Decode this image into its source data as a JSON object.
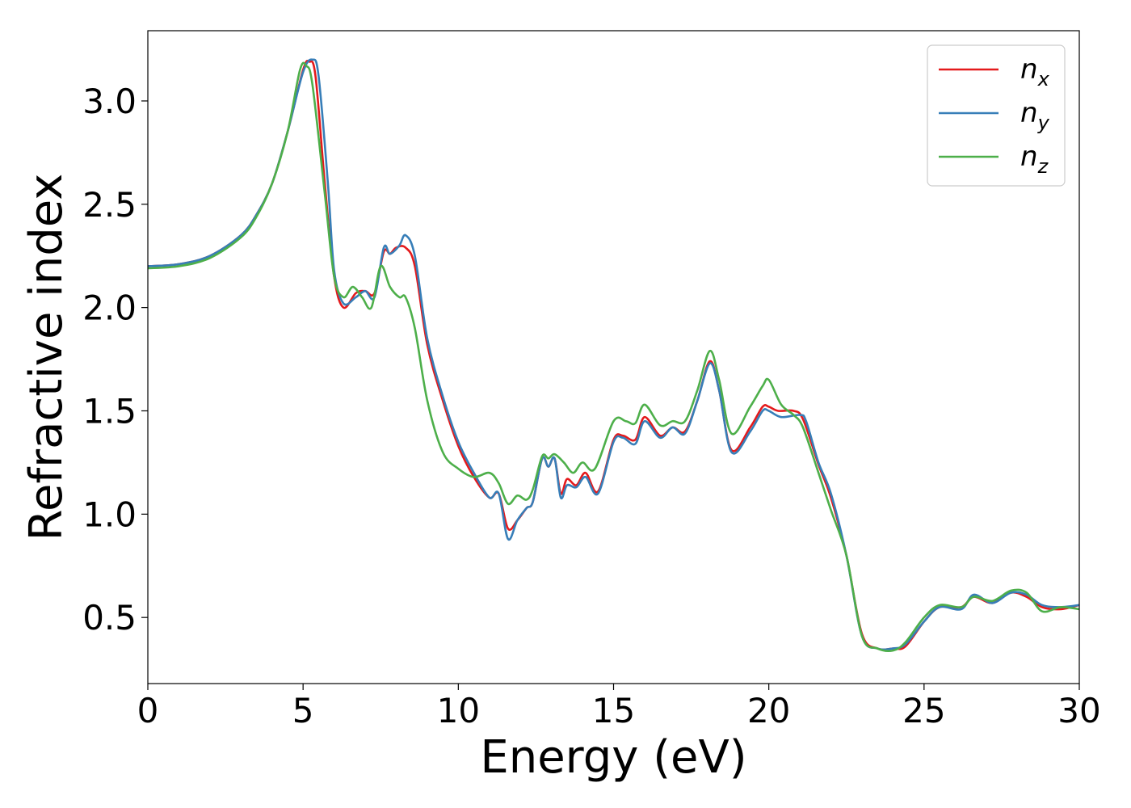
{
  "chart_data": {
    "type": "line",
    "title": "",
    "xlabel": "Energy (eV)",
    "ylabel": "Refractive index",
    "xlim": [
      0,
      30
    ],
    "ylim": [
      0.18,
      3.34
    ],
    "xticks": [
      0,
      5,
      10,
      15,
      20,
      25,
      30
    ],
    "xtick_labels": [
      "0",
      "5",
      "10",
      "15",
      "20",
      "25",
      "30"
    ],
    "yticks": [
      0.5,
      1.0,
      1.5,
      2.0,
      2.5,
      3.0
    ],
    "ytick_labels": [
      "0.5",
      "1.0",
      "1.5",
      "2.0",
      "2.5",
      "3.0"
    ],
    "grid": false,
    "legend_position": "top-right",
    "series": [
      {
        "name": "n",
        "subscript": "x",
        "color": "#e41a1c",
        "points": [
          [
            0,
            2.2
          ],
          [
            1,
            2.21
          ],
          [
            2,
            2.25
          ],
          [
            3,
            2.35
          ],
          [
            3.5,
            2.45
          ],
          [
            4,
            2.6
          ],
          [
            4.5,
            2.85
          ],
          [
            5,
            3.15
          ],
          [
            5.2,
            3.19
          ],
          [
            5.4,
            3.12
          ],
          [
            5.7,
            2.6
          ],
          [
            6,
            2.15
          ],
          [
            6.3,
            2.0
          ],
          [
            6.7,
            2.07
          ],
          [
            7,
            2.08
          ],
          [
            7.3,
            2.07
          ],
          [
            7.6,
            2.27
          ],
          [
            7.8,
            2.26
          ],
          [
            8,
            2.29
          ],
          [
            8.3,
            2.29
          ],
          [
            8.6,
            2.2
          ],
          [
            9,
            1.82
          ],
          [
            9.5,
            1.55
          ],
          [
            10,
            1.33
          ],
          [
            10.5,
            1.18
          ],
          [
            11,
            1.08
          ],
          [
            11.3,
            1.1
          ],
          [
            11.6,
            0.93
          ],
          [
            11.9,
            0.97
          ],
          [
            12.2,
            1.03
          ],
          [
            12.4,
            1.06
          ],
          [
            12.7,
            1.27
          ],
          [
            12.9,
            1.23
          ],
          [
            13.1,
            1.27
          ],
          [
            13.3,
            1.1
          ],
          [
            13.5,
            1.17
          ],
          [
            13.8,
            1.14
          ],
          [
            14.1,
            1.2
          ],
          [
            14.5,
            1.11
          ],
          [
            15,
            1.36
          ],
          [
            15.3,
            1.38
          ],
          [
            15.7,
            1.36
          ],
          [
            16,
            1.47
          ],
          [
            16.5,
            1.38
          ],
          [
            16.9,
            1.42
          ],
          [
            17.3,
            1.4
          ],
          [
            17.7,
            1.55
          ],
          [
            18.1,
            1.74
          ],
          [
            18.4,
            1.6
          ],
          [
            18.8,
            1.31
          ],
          [
            19.4,
            1.42
          ],
          [
            19.8,
            1.52
          ],
          [
            20,
            1.52
          ],
          [
            20.3,
            1.5
          ],
          [
            20.8,
            1.5
          ],
          [
            21.1,
            1.46
          ],
          [
            21.6,
            1.24
          ],
          [
            22,
            1.08
          ],
          [
            22.5,
            0.8
          ],
          [
            23,
            0.42
          ],
          [
            23.5,
            0.35
          ],
          [
            24,
            0.35
          ],
          [
            24.4,
            0.36
          ],
          [
            25,
            0.48
          ],
          [
            25.5,
            0.55
          ],
          [
            26.2,
            0.55
          ],
          [
            26.6,
            0.6
          ],
          [
            27.2,
            0.57
          ],
          [
            27.8,
            0.62
          ],
          [
            28.3,
            0.6
          ],
          [
            28.8,
            0.55
          ],
          [
            29.4,
            0.54
          ],
          [
            30,
            0.56
          ]
        ]
      },
      {
        "name": "n",
        "subscript": "y",
        "color": "#377eb8",
        "points": [
          [
            0,
            2.2
          ],
          [
            1,
            2.21
          ],
          [
            2,
            2.25
          ],
          [
            3,
            2.35
          ],
          [
            3.5,
            2.45
          ],
          [
            4,
            2.6
          ],
          [
            4.5,
            2.85
          ],
          [
            5,
            3.14
          ],
          [
            5.3,
            3.2
          ],
          [
            5.5,
            3.12
          ],
          [
            5.8,
            2.6
          ],
          [
            6,
            2.18
          ],
          [
            6.3,
            2.02
          ],
          [
            6.7,
            2.05
          ],
          [
            7,
            2.08
          ],
          [
            7.3,
            2.05
          ],
          [
            7.6,
            2.29
          ],
          [
            7.8,
            2.26
          ],
          [
            8.1,
            2.3
          ],
          [
            8.3,
            2.35
          ],
          [
            8.6,
            2.25
          ],
          [
            9,
            1.85
          ],
          [
            9.5,
            1.57
          ],
          [
            10,
            1.35
          ],
          [
            10.5,
            1.2
          ],
          [
            11,
            1.08
          ],
          [
            11.3,
            1.1
          ],
          [
            11.6,
            0.88
          ],
          [
            11.9,
            0.97
          ],
          [
            12.2,
            1.03
          ],
          [
            12.4,
            1.06
          ],
          [
            12.7,
            1.27
          ],
          [
            12.9,
            1.23
          ],
          [
            13.1,
            1.27
          ],
          [
            13.3,
            1.08
          ],
          [
            13.5,
            1.14
          ],
          [
            13.8,
            1.13
          ],
          [
            14.1,
            1.18
          ],
          [
            14.5,
            1.1
          ],
          [
            15,
            1.35
          ],
          [
            15.3,
            1.37
          ],
          [
            15.7,
            1.34
          ],
          [
            16,
            1.45
          ],
          [
            16.5,
            1.37
          ],
          [
            16.9,
            1.42
          ],
          [
            17.3,
            1.39
          ],
          [
            17.7,
            1.55
          ],
          [
            18.1,
            1.73
          ],
          [
            18.4,
            1.6
          ],
          [
            18.8,
            1.3
          ],
          [
            19.4,
            1.4
          ],
          [
            19.8,
            1.5
          ],
          [
            20,
            1.5
          ],
          [
            20.4,
            1.47
          ],
          [
            21,
            1.48
          ],
          [
            21.2,
            1.45
          ],
          [
            21.6,
            1.25
          ],
          [
            22,
            1.1
          ],
          [
            22.5,
            0.8
          ],
          [
            23,
            0.41
          ],
          [
            23.5,
            0.35
          ],
          [
            24,
            0.35
          ],
          [
            24.4,
            0.37
          ],
          [
            25,
            0.48
          ],
          [
            25.5,
            0.55
          ],
          [
            26.2,
            0.54
          ],
          [
            26.6,
            0.61
          ],
          [
            27.2,
            0.57
          ],
          [
            27.8,
            0.62
          ],
          [
            28.3,
            0.61
          ],
          [
            28.8,
            0.56
          ],
          [
            29.4,
            0.55
          ],
          [
            30,
            0.56
          ]
        ]
      },
      {
        "name": "n",
        "subscript": "z",
        "color": "#4daf4a",
        "points": [
          [
            0,
            2.19
          ],
          [
            1,
            2.2
          ],
          [
            2,
            2.24
          ],
          [
            3,
            2.34
          ],
          [
            3.5,
            2.44
          ],
          [
            4,
            2.6
          ],
          [
            4.5,
            2.85
          ],
          [
            4.9,
            3.15
          ],
          [
            5.1,
            3.17
          ],
          [
            5.3,
            3.08
          ],
          [
            5.7,
            2.55
          ],
          [
            6,
            2.15
          ],
          [
            6.3,
            2.05
          ],
          [
            6.6,
            2.1
          ],
          [
            6.9,
            2.05
          ],
          [
            7.2,
            2.0
          ],
          [
            7.5,
            2.2
          ],
          [
            7.8,
            2.1
          ],
          [
            8.1,
            2.05
          ],
          [
            8.3,
            2.05
          ],
          [
            8.6,
            1.9
          ],
          [
            9,
            1.55
          ],
          [
            9.5,
            1.3
          ],
          [
            10,
            1.22
          ],
          [
            10.5,
            1.18
          ],
          [
            11,
            1.2
          ],
          [
            11.3,
            1.15
          ],
          [
            11.6,
            1.05
          ],
          [
            11.9,
            1.09
          ],
          [
            12.2,
            1.07
          ],
          [
            12.4,
            1.12
          ],
          [
            12.7,
            1.28
          ],
          [
            12.9,
            1.27
          ],
          [
            13.1,
            1.29
          ],
          [
            13.4,
            1.25
          ],
          [
            13.7,
            1.2
          ],
          [
            14,
            1.25
          ],
          [
            14.4,
            1.22
          ],
          [
            15,
            1.45
          ],
          [
            15.4,
            1.45
          ],
          [
            15.7,
            1.44
          ],
          [
            16,
            1.53
          ],
          [
            16.5,
            1.43
          ],
          [
            16.9,
            1.45
          ],
          [
            17.3,
            1.45
          ],
          [
            17.7,
            1.6
          ],
          [
            18.1,
            1.79
          ],
          [
            18.4,
            1.65
          ],
          [
            18.8,
            1.39
          ],
          [
            19.4,
            1.52
          ],
          [
            19.8,
            1.62
          ],
          [
            20,
            1.65
          ],
          [
            20.4,
            1.53
          ],
          [
            20.8,
            1.48
          ],
          [
            21.1,
            1.42
          ],
          [
            21.6,
            1.2
          ],
          [
            22,
            1.02
          ],
          [
            22.5,
            0.8
          ],
          [
            23,
            0.41
          ],
          [
            23.5,
            0.35
          ],
          [
            24,
            0.34
          ],
          [
            24.4,
            0.38
          ],
          [
            25,
            0.5
          ],
          [
            25.5,
            0.56
          ],
          [
            26.2,
            0.55
          ],
          [
            26.6,
            0.6
          ],
          [
            27.2,
            0.58
          ],
          [
            27.8,
            0.63
          ],
          [
            28.3,
            0.62
          ],
          [
            28.8,
            0.53
          ],
          [
            29.4,
            0.55
          ],
          [
            30,
            0.54
          ]
        ]
      }
    ]
  }
}
